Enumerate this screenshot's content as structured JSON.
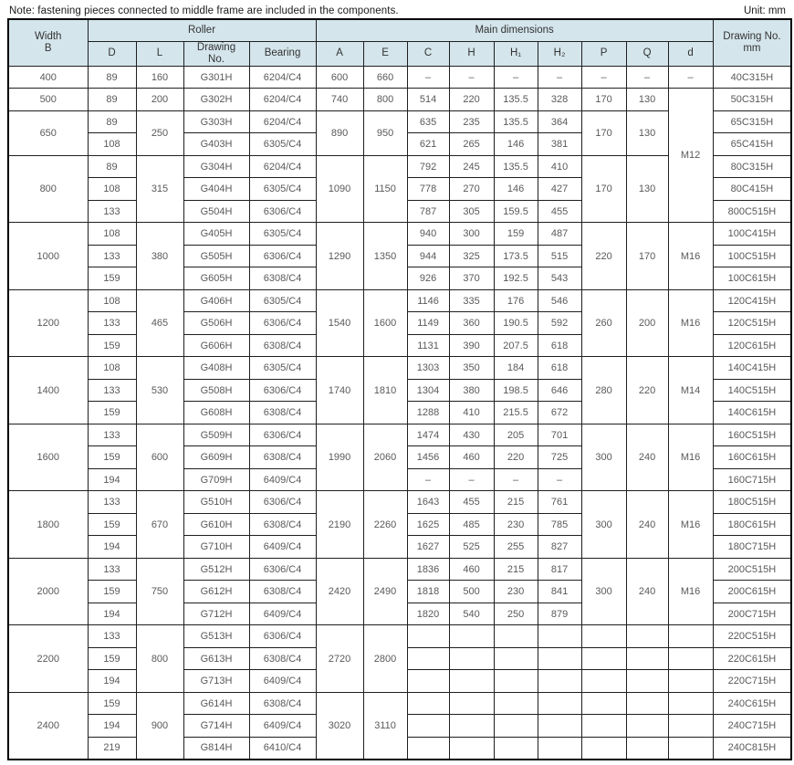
{
  "note": "Note: fastening pieces connected to middle frame are included in the components.",
  "unit": "Unit: mm",
  "colors": {
    "header-bg": "#d4e5ec",
    "border": "#1f1f1f",
    "body-text": "#595959",
    "header-text": "#333333"
  },
  "table": {
    "header": {
      "width_b": "Width\nB",
      "roller": "Roller",
      "main": "Main dimensions",
      "drawing_no_mm": "Drawing No.\nmm",
      "sub": [
        "D",
        "L",
        "Drawing\nNo.",
        "Bearing",
        "A",
        "E",
        "C",
        "H",
        "H₁",
        "H₂",
        "P",
        "Q",
        "d"
      ]
    },
    "rows": [
      [
        {
          "v": "400"
        },
        "89",
        "160",
        "G301H",
        "6204/C4",
        "600",
        "660",
        "–",
        "–",
        "–",
        "–",
        "–",
        "–",
        "–",
        "40C315H"
      ],
      [
        "500",
        "89",
        "200",
        "G302H",
        "6204/C4",
        "740",
        "800",
        "514",
        "220",
        "135.5",
        "328",
        "170",
        "130",
        {
          "v": "M12",
          "rs": 6
        },
        "50C315H"
      ],
      [
        {
          "v": "650",
          "rs": 2
        },
        "89",
        {
          "v": "250",
          "rs": 2
        },
        "G303H",
        "6204/C4",
        {
          "v": "890",
          "rs": 2
        },
        {
          "v": "950",
          "rs": 2
        },
        "635",
        "235",
        "135.5",
        "364",
        {
          "v": "170",
          "rs": 2
        },
        {
          "v": "130",
          "rs": 2
        },
        "65C315H"
      ],
      [
        "108",
        "G403H",
        "6305/C4",
        "621",
        "265",
        "146",
        "381",
        "65C415H"
      ],
      [
        {
          "v": "800",
          "rs": 3
        },
        "89",
        {
          "v": "315",
          "rs": 3
        },
        "G304H",
        "6204/C4",
        {
          "v": "1090",
          "rs": 3
        },
        {
          "v": "1150",
          "rs": 3
        },
        "792",
        "245",
        "135.5",
        "410",
        {
          "v": "170",
          "rs": 3
        },
        {
          "v": "130",
          "rs": 3
        },
        "80C315H"
      ],
      [
        "108",
        "G404H",
        "6305/C4",
        "778",
        "270",
        "146",
        "427",
        "80C415H"
      ],
      [
        "133",
        "G504H",
        "6306/C4",
        "787",
        "305",
        "159.5",
        "455",
        "800C515H"
      ],
      [
        {
          "v": "1000",
          "rs": 3
        },
        "108",
        {
          "v": "380",
          "rs": 3
        },
        "G405H",
        "6305/C4",
        {
          "v": "1290",
          "rs": 3
        },
        {
          "v": "1350",
          "rs": 3
        },
        "940",
        "300",
        "159",
        "487",
        {
          "v": "220",
          "rs": 3
        },
        {
          "v": "170",
          "rs": 3
        },
        {
          "v": "M16",
          "rs": 3
        },
        "100C415H"
      ],
      [
        "133",
        "G505H",
        "6306/C4",
        "944",
        "325",
        "173.5",
        "515",
        "100C515H"
      ],
      [
        "159",
        "G605H",
        "6308/C4",
        "926",
        "370",
        "192.5",
        "543",
        "100C615H"
      ],
      [
        {
          "v": "1200",
          "rs": 3
        },
        "108",
        {
          "v": "465",
          "rs": 3
        },
        "G406H",
        "6305/C4",
        {
          "v": "1540",
          "rs": 3
        },
        {
          "v": "1600",
          "rs": 3
        },
        "1146",
        "335",
        "176",
        "546",
        {
          "v": "260",
          "rs": 3
        },
        {
          "v": "200",
          "rs": 3
        },
        {
          "v": "M16",
          "rs": 3
        },
        "120C415H"
      ],
      [
        "133",
        "G506H",
        "6306/C4",
        "1149",
        "360",
        "190.5",
        "592",
        "120C515H"
      ],
      [
        "159",
        "G606H",
        "6308/C4",
        "1131",
        "390",
        "207.5",
        "618",
        "120C615H"
      ],
      [
        {
          "v": "1400",
          "rs": 3
        },
        "108",
        {
          "v": "530",
          "rs": 3
        },
        "G408H",
        "6305/C4",
        {
          "v": "1740",
          "rs": 3
        },
        {
          "v": "1810",
          "rs": 3
        },
        "1303",
        "350",
        "184",
        "618",
        {
          "v": "280",
          "rs": 3
        },
        {
          "v": "220",
          "rs": 3
        },
        {
          "v": "M14",
          "rs": 3
        },
        "140C415H"
      ],
      [
        "133",
        "G508H",
        "6306/C4",
        "1304",
        "380",
        "198.5",
        "646",
        "140C515H"
      ],
      [
        "159",
        "G608H",
        "6308/C4",
        "1288",
        "410",
        "215.5",
        "672",
        "140C615H"
      ],
      [
        {
          "v": "1600",
          "rs": 3
        },
        "133",
        {
          "v": "600",
          "rs": 3
        },
        "G509H",
        "6306/C4",
        {
          "v": "1990",
          "rs": 3
        },
        {
          "v": "2060",
          "rs": 3
        },
        "1474",
        "430",
        "205",
        "701",
        {
          "v": "300",
          "rs": 3
        },
        {
          "v": "240",
          "rs": 3
        },
        {
          "v": "M16",
          "rs": 3
        },
        "160C515H"
      ],
      [
        "159",
        "G609H",
        "6308/C4",
        "1456",
        "460",
        "220",
        "725",
        "160C615H"
      ],
      [
        "194",
        "G709H",
        "6409/C4",
        "–",
        "–",
        "–",
        "–",
        "160C715H"
      ],
      [
        {
          "v": "1800",
          "rs": 3
        },
        "133",
        {
          "v": "670",
          "rs": 3
        },
        "G510H",
        "6306/C4",
        {
          "v": "2190",
          "rs": 3
        },
        {
          "v": "2260",
          "rs": 3
        },
        "1643",
        "455",
        "215",
        "761",
        {
          "v": "300",
          "rs": 3
        },
        {
          "v": "240",
          "rs": 3
        },
        {
          "v": "M16",
          "rs": 3
        },
        "180C515H"
      ],
      [
        "159",
        "G610H",
        "6308/C4",
        "1625",
        "485",
        "230",
        "785",
        "180C615H"
      ],
      [
        "194",
        "G710H",
        "6409/C4",
        "1627",
        "525",
        "255",
        "827",
        "180C715H"
      ],
      [
        {
          "v": "2000",
          "rs": 3
        },
        "133",
        {
          "v": "750",
          "rs": 3
        },
        "G512H",
        "6306/C4",
        {
          "v": "2420",
          "rs": 3
        },
        {
          "v": "2490",
          "rs": 3
        },
        "1836",
        "460",
        "215",
        "817",
        {
          "v": "300",
          "rs": 3
        },
        {
          "v": "240",
          "rs": 3
        },
        {
          "v": "M16",
          "rs": 3
        },
        "200C515H"
      ],
      [
        "159",
        "G612H",
        "6308/C4",
        "1818",
        "500",
        "230",
        "841",
        "200C615H"
      ],
      [
        "194",
        "G712H",
        "6409/C4",
        "1820",
        "540",
        "250",
        "879",
        "200C715H"
      ],
      [
        {
          "v": "2200",
          "rs": 3
        },
        "133",
        {
          "v": "800",
          "rs": 3
        },
        "G513H",
        "6306/C4",
        {
          "v": "2720",
          "rs": 3
        },
        {
          "v": "2800",
          "rs": 3
        },
        "",
        "",
        "",
        "",
        "",
        "",
        "",
        "220C515H"
      ],
      [
        "159",
        "G613H",
        "6308/C4",
        "",
        "",
        "",
        "",
        "",
        "",
        "",
        "220C615H"
      ],
      [
        "194",
        "G713H",
        "6409/C4",
        "",
        "",
        "",
        "",
        "",
        "",
        "",
        "220C715H"
      ],
      [
        {
          "v": "2400",
          "rs": 3
        },
        "159",
        {
          "v": "900",
          "rs": 3
        },
        "G614H",
        "6308/C4",
        {
          "v": "3020",
          "rs": 3
        },
        {
          "v": "3110",
          "rs": 3
        },
        "",
        "",
        "",
        "",
        "",
        "",
        "",
        "240C615H"
      ],
      [
        "194",
        "G714H",
        "6409/C4",
        "",
        "",
        "",
        "",
        "",
        "",
        "",
        "240C715H"
      ],
      [
        "219",
        "G814H",
        "6410/C4",
        "",
        "",
        "",
        "",
        "",
        "",
        "",
        "240C815H"
      ]
    ]
  }
}
